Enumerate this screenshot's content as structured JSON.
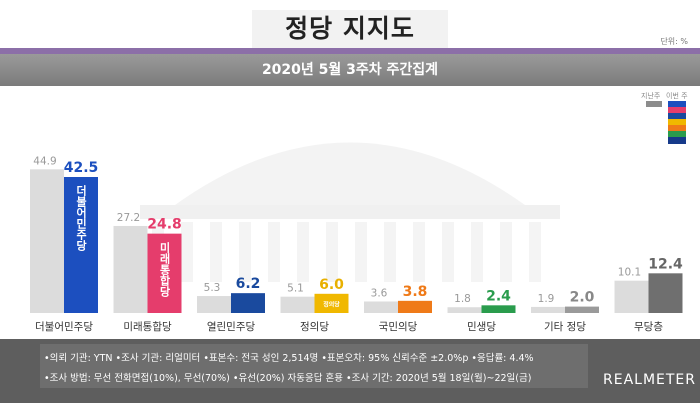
{
  "header": {
    "title": "정당 지지도",
    "unit": "단위: %",
    "subtitle": "2020년 5월 3주차 주간집계"
  },
  "legend": {
    "prev_label": "지난주",
    "curr_label": "이번 주",
    "curr_swatch_colors": [
      "#1c4fbf",
      "#e53d6c",
      "#1a4a9e",
      "#f0b800",
      "#ef7a18",
      "#2a9c4d",
      "#163a8a"
    ]
  },
  "chart_data": {
    "type": "bar",
    "categories": [
      "더불어민주당",
      "미래통합당",
      "열린민주당",
      "정의당",
      "국민의당",
      "민생당",
      "기타 정당",
      "무당층"
    ],
    "series": [
      {
        "name": "지난주",
        "values": [
          44.9,
          27.2,
          5.3,
          5.1,
          3.6,
          1.8,
          1.9,
          10.1
        ]
      },
      {
        "name": "이번 주",
        "values": [
          42.5,
          24.8,
          6.2,
          6.0,
          3.8,
          2.4,
          2.0,
          12.4
        ]
      }
    ],
    "prev_labels": [
      "44.9",
      "27.2",
      "5.3",
      "5.1",
      "3.6",
      "1.8",
      "1.9",
      "10.1"
    ],
    "curr_labels": [
      "42.5",
      "24.8",
      "6.2",
      "6.0",
      "3.8",
      "2.4",
      "2.0",
      "12.4"
    ],
    "colors": [
      "#1c4fbf",
      "#e53d6c",
      "#1a4a9e",
      "#f0b800",
      "#ef7a18",
      "#2a9c4d",
      "#9a9a9a",
      "#6f6f6f"
    ],
    "label_colors": [
      "#1c4fbf",
      "#e53d6c",
      "#1a4a9e",
      "#e8b000",
      "#ef7a18",
      "#2a9c4d",
      "#888888",
      "#666666"
    ],
    "prev_color": "#dcdcdc",
    "bar_logos": [
      "더불어민주당",
      "미래통합당",
      "",
      "정의당",
      "",
      "",
      "",
      ""
    ],
    "ylim": [
      0,
      50
    ],
    "xlabel": "",
    "ylabel": "",
    "grid": false
  },
  "footer": {
    "line1": "•의뢰 기관: YTN •조사 기관: 리얼미터 •표본수: 전국 성인 2,514명 •표본오차: 95% 신뢰수준 ±2.0%p •응답률: 4.4%",
    "line2": "•조사 방법: 무선 전화면접(10%), 무선(70%) •유선(20%) 자동응답 혼용 •조사 기간: 2020년 5월 18일(월)~22일(금)",
    "brand": "REALMETER"
  }
}
